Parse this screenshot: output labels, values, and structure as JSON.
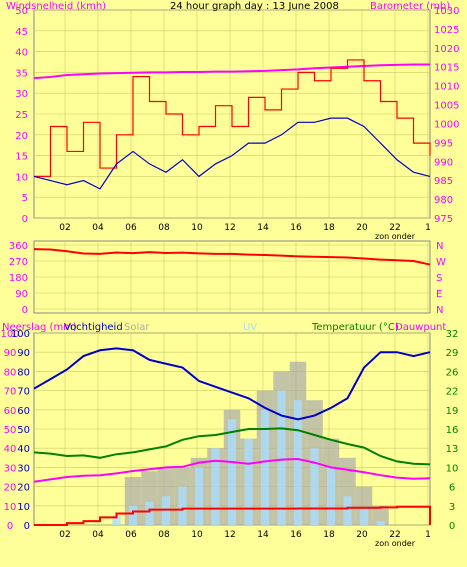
{
  "header": {
    "left_label": "Windsnelheid (kmh)",
    "title": "24 hour graph day : 13 June 2008",
    "right_label": "Barometer (mb)"
  },
  "x_axis": {
    "ticks": [
      "02",
      "04",
      "06",
      "08",
      "10",
      "12",
      "14",
      "16",
      "18",
      "20",
      "22",
      "1"
    ],
    "extra_label": "zon onder"
  },
  "panel3": {
    "label_rain": "Neerslag (mm)",
    "label_humidity": "Vochtigheid",
    "label_solar": "Solar",
    "label_uv": "UV",
    "label_temp": "Temperatuur (°C)",
    "label_dew": "Dauwpunt"
  },
  "colors": {
    "background": "#ffff99",
    "plot_background": "#ffff99",
    "wind_gust": "#ff0000",
    "wind_avg": "#0000cc",
    "barometer": "#ff00ff",
    "wind_dir": "#ff0000",
    "humidity": "#0000cc",
    "temperature": "#ff00ff",
    "dewpoint": "#008000",
    "rain": "#ff0000",
    "solar": "#aaaaaa",
    "uv": "#aaddff",
    "left_axis_rain": "#ff00ff",
    "right_axis_temp": "#008000"
  },
  "chart_data": [
    {
      "type": "line",
      "title": "24 hour graph day : 13 June 2008",
      "ylabel": "Windsnelheid (kmh)",
      "y2label": "Barometer (mb)",
      "ylim": [
        0,
        50
      ],
      "y2lim": [
        975,
        1030
      ],
      "yticks": [
        0,
        5,
        10,
        15,
        20,
        25,
        30,
        35,
        40,
        45,
        50
      ],
      "y2ticks": [
        975,
        980,
        985,
        990,
        995,
        1000,
        1005,
        1010,
        1015,
        1020,
        1025,
        1030
      ],
      "grid": true,
      "x": [
        1,
        2,
        3,
        4,
        5,
        6,
        7,
        8,
        9,
        10,
        11,
        12,
        13,
        14,
        15,
        16,
        17,
        18,
        19,
        20,
        21,
        22,
        23,
        24,
        25
      ],
      "series": [
        {
          "name": "Windsnelheid",
          "role": "gust",
          "values": [
            10,
            22,
            16,
            23,
            12,
            20,
            34,
            28,
            25,
            20,
            22,
            27,
            22,
            29,
            26,
            31,
            35,
            33,
            36,
            38,
            33,
            28,
            24,
            18,
            15
          ]
        },
        {
          "name": "Windsnelheid",
          "role": "average",
          "values": [
            10,
            9,
            8,
            9,
            7,
            13,
            16,
            13,
            11,
            14,
            10,
            13,
            15,
            18,
            18,
            20,
            23,
            23,
            24,
            24,
            22,
            18,
            14,
            11,
            10
          ]
        },
        {
          "name": "Barometer (mb)",
          "axis": "y2",
          "values": [
            1012,
            1012.3,
            1012.8,
            1013,
            1013.2,
            1013.3,
            1013.4,
            1013.5,
            1013.5,
            1013.6,
            1013.6,
            1013.7,
            1013.7,
            1013.8,
            1013.9,
            1014.1,
            1014.3,
            1014.6,
            1014.8,
            1015,
            1015.2,
            1015.4,
            1015.5,
            1015.6,
            1015.6
          ]
        }
      ]
    },
    {
      "type": "line",
      "ylim": [
        0,
        360
      ],
      "yticks": [
        0,
        90,
        180,
        270,
        360
      ],
      "y2ticklabels": [
        "N",
        "E",
        "S",
        "W",
        "N"
      ],
      "grid": true,
      "x": [
        1,
        2,
        3,
        4,
        5,
        6,
        7,
        8,
        9,
        10,
        11,
        12,
        13,
        14,
        15,
        16,
        17,
        18,
        19,
        20,
        21,
        22,
        23,
        24,
        25
      ],
      "series": [
        {
          "name": "Wind direction",
          "values": [
            337,
            335,
            325,
            312,
            310,
            318,
            314,
            320,
            315,
            317,
            313,
            310,
            310,
            306,
            304,
            300,
            296,
            294,
            292,
            290,
            284,
            278,
            274,
            270,
            250
          ]
        }
      ]
    },
    {
      "type": "line",
      "ylabel": "Neerslag (mm)",
      "y2label": "Temperatuur (°C)",
      "ylim": [
        0,
        100
      ],
      "y2lim": [
        0,
        32
      ],
      "yticks_rain": [
        0,
        10,
        20,
        30,
        40,
        50,
        60,
        70,
        80,
        90,
        100
      ],
      "yticks_humidity": [
        0,
        10,
        20,
        30,
        40,
        50,
        60,
        70,
        80,
        90,
        100
      ],
      "y2ticks": [
        0,
        3,
        6,
        10,
        13,
        16,
        19,
        22,
        26,
        29,
        32
      ],
      "grid": true,
      "x": [
        1,
        2,
        3,
        4,
        5,
        6,
        7,
        8,
        9,
        10,
        11,
        12,
        13,
        14,
        15,
        16,
        17,
        18,
        19,
        20,
        21,
        22,
        23,
        24,
        25
      ],
      "series": [
        {
          "name": "Vochtigheid",
          "values": [
            71,
            76,
            81,
            88,
            91,
            92,
            91,
            86,
            84,
            82,
            75,
            72,
            69,
            66,
            61,
            57,
            55,
            57,
            61,
            66,
            82,
            90,
            90,
            88,
            90
          ]
        },
        {
          "name": "Temperatuur (°C)",
          "axis": "y2",
          "values": [
            7.2,
            7.6,
            8.0,
            8.2,
            8.3,
            8.6,
            9.0,
            9.3,
            9.6,
            9.7,
            10.4,
            10.7,
            10.5,
            10.2,
            10.6,
            10.9,
            11.0,
            10.4,
            9.6,
            9.2,
            8.8,
            8.3,
            7.9,
            7.7,
            7.8
          ]
        },
        {
          "name": "Dauwpunt",
          "axis": "y2",
          "values": [
            12.1,
            11.9,
            11.5,
            11.6,
            11.2,
            11.8,
            12.1,
            12.6,
            13.1,
            14.2,
            14.8,
            15.0,
            15.5,
            16.0,
            16.0,
            16.1,
            15.8,
            15.0,
            14.2,
            13.5,
            12.9,
            11.5,
            10.6,
            10.2,
            10.1
          ]
        },
        {
          "name": "Neerslag (mm)",
          "values": [
            0,
            0,
            1,
            2,
            4,
            6,
            7,
            8,
            8,
            8.5,
            8.5,
            8.5,
            8.5,
            8.5,
            8.5,
            8.5,
            8.6,
            8.6,
            8.6,
            9,
            9,
            9.2,
            9.5,
            9.5,
            0
          ]
        },
        {
          "name": "Solar",
          "values": [
            0,
            0,
            0,
            0,
            0,
            0,
            25,
            28,
            30,
            30,
            35,
            40,
            60,
            45,
            70,
            80,
            85,
            65,
            45,
            35,
            20,
            10,
            0,
            0,
            0
          ]
        },
        {
          "name": "UV",
          "values": [
            0,
            0,
            0,
            0,
            0,
            5,
            10,
            12,
            15,
            20,
            30,
            40,
            55,
            45,
            60,
            70,
            65,
            40,
            30,
            15,
            8,
            2,
            0,
            0,
            0
          ]
        }
      ]
    }
  ]
}
